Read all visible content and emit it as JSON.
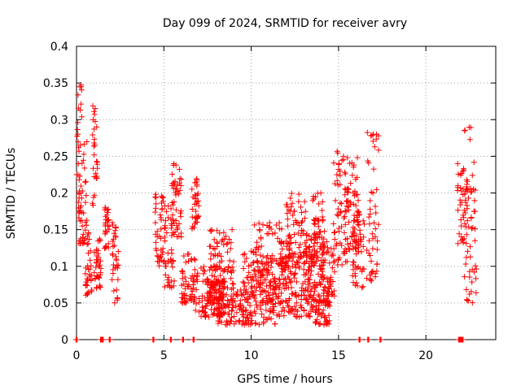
{
  "chart_data": {
    "type": "scatter",
    "title": "Day 099 of 2024, SRMTID for receiver avry",
    "xlabel": "GPS time / hours",
    "ylabel": "SRMTID / TECUs",
    "xlim": [
      0,
      24
    ],
    "ylim": [
      0,
      0.4
    ],
    "x_ticks": [
      0,
      5,
      10,
      15,
      20
    ],
    "y_ticks": [
      0,
      0.05,
      0.1,
      0.15,
      0.2,
      0.25,
      0.3,
      0.35,
      0.4
    ],
    "x_tick_labels": [
      "0",
      "5",
      "10",
      "15",
      "20"
    ],
    "y_tick_labels": [
      "0",
      "0.05",
      "0.1",
      "0.15",
      "0.2",
      "0.25",
      "0.3",
      "0.35",
      "0.4"
    ],
    "grid": true,
    "marker": "+",
    "color": "#ff0000",
    "clusters": [
      {
        "x": [
          0.0,
          0.3
        ],
        "y": [
          0.16,
          0.35
        ]
      },
      {
        "x": [
          0.1,
          0.6
        ],
        "y": [
          0.13,
          0.27
        ]
      },
      {
        "x": [
          0.5,
          0.9
        ],
        "y": [
          0.06,
          0.15
        ]
      },
      {
        "x": [
          0.9,
          1.2
        ],
        "y": [
          0.18,
          0.32
        ]
      },
      {
        "x": [
          1.0,
          1.4
        ],
        "y": [
          0.07,
          0.14
        ]
      },
      {
        "x": [
          1.6,
          1.9
        ],
        "y": [
          0.12,
          0.18
        ]
      },
      {
        "x": [
          2.0,
          2.4
        ],
        "y": [
          0.05,
          0.16
        ]
      },
      {
        "x": [
          4.5,
          5.0
        ],
        "y": [
          0.1,
          0.2
        ]
      },
      {
        "x": [
          5.0,
          5.6
        ],
        "y": [
          0.07,
          0.19
        ]
      },
      {
        "x": [
          5.4,
          6.0
        ],
        "y": [
          0.14,
          0.24
        ]
      },
      {
        "x": [
          6.0,
          6.8
        ],
        "y": [
          0.05,
          0.12
        ]
      },
      {
        "x": [
          6.6,
          7.0
        ],
        "y": [
          0.15,
          0.22
        ]
      },
      {
        "x": [
          6.8,
          8.5
        ],
        "y": [
          0.03,
          0.1
        ]
      },
      {
        "x": [
          7.5,
          9.0
        ],
        "y": [
          0.05,
          0.15
        ]
      },
      {
        "x": [
          8.0,
          10.0
        ],
        "y": [
          0.02,
          0.08
        ]
      },
      {
        "x": [
          9.5,
          11.5
        ],
        "y": [
          0.02,
          0.12
        ]
      },
      {
        "x": [
          10.0,
          12.0
        ],
        "y": [
          0.05,
          0.16
        ]
      },
      {
        "x": [
          11.5,
          13.5
        ],
        "y": [
          0.03,
          0.12
        ]
      },
      {
        "x": [
          12.0,
          13.2
        ],
        "y": [
          0.1,
          0.2
        ]
      },
      {
        "x": [
          13.0,
          14.0
        ],
        "y": [
          0.05,
          0.17
        ]
      },
      {
        "x": [
          13.4,
          14.2
        ],
        "y": [
          0.1,
          0.2
        ]
      },
      {
        "x": [
          13.5,
          14.5
        ],
        "y": [
          0.02,
          0.08
        ]
      },
      {
        "x": [
          14.0,
          14.8
        ],
        "y": [
          0.05,
          0.14
        ]
      },
      {
        "x": [
          14.7,
          15.6
        ],
        "y": [
          0.1,
          0.26
        ]
      },
      {
        "x": [
          15.3,
          16.2
        ],
        "y": [
          0.12,
          0.25
        ]
      },
      {
        "x": [
          15.8,
          16.5
        ],
        "y": [
          0.07,
          0.17
        ]
      },
      {
        "x": [
          16.6,
          17.3
        ],
        "y": [
          0.08,
          0.29
        ]
      },
      {
        "x": [
          21.8,
          22.4
        ],
        "y": [
          0.13,
          0.24
        ]
      },
      {
        "x": [
          22.2,
          22.9
        ],
        "y": [
          0.05,
          0.29
        ]
      }
    ],
    "zero_points": [
      0.0,
      1.4,
      1.5,
      1.9,
      4.4,
      5.4,
      6.1,
      6.7,
      16.2,
      16.7,
      17.4,
      21.9,
      22.0,
      22.1
    ]
  }
}
